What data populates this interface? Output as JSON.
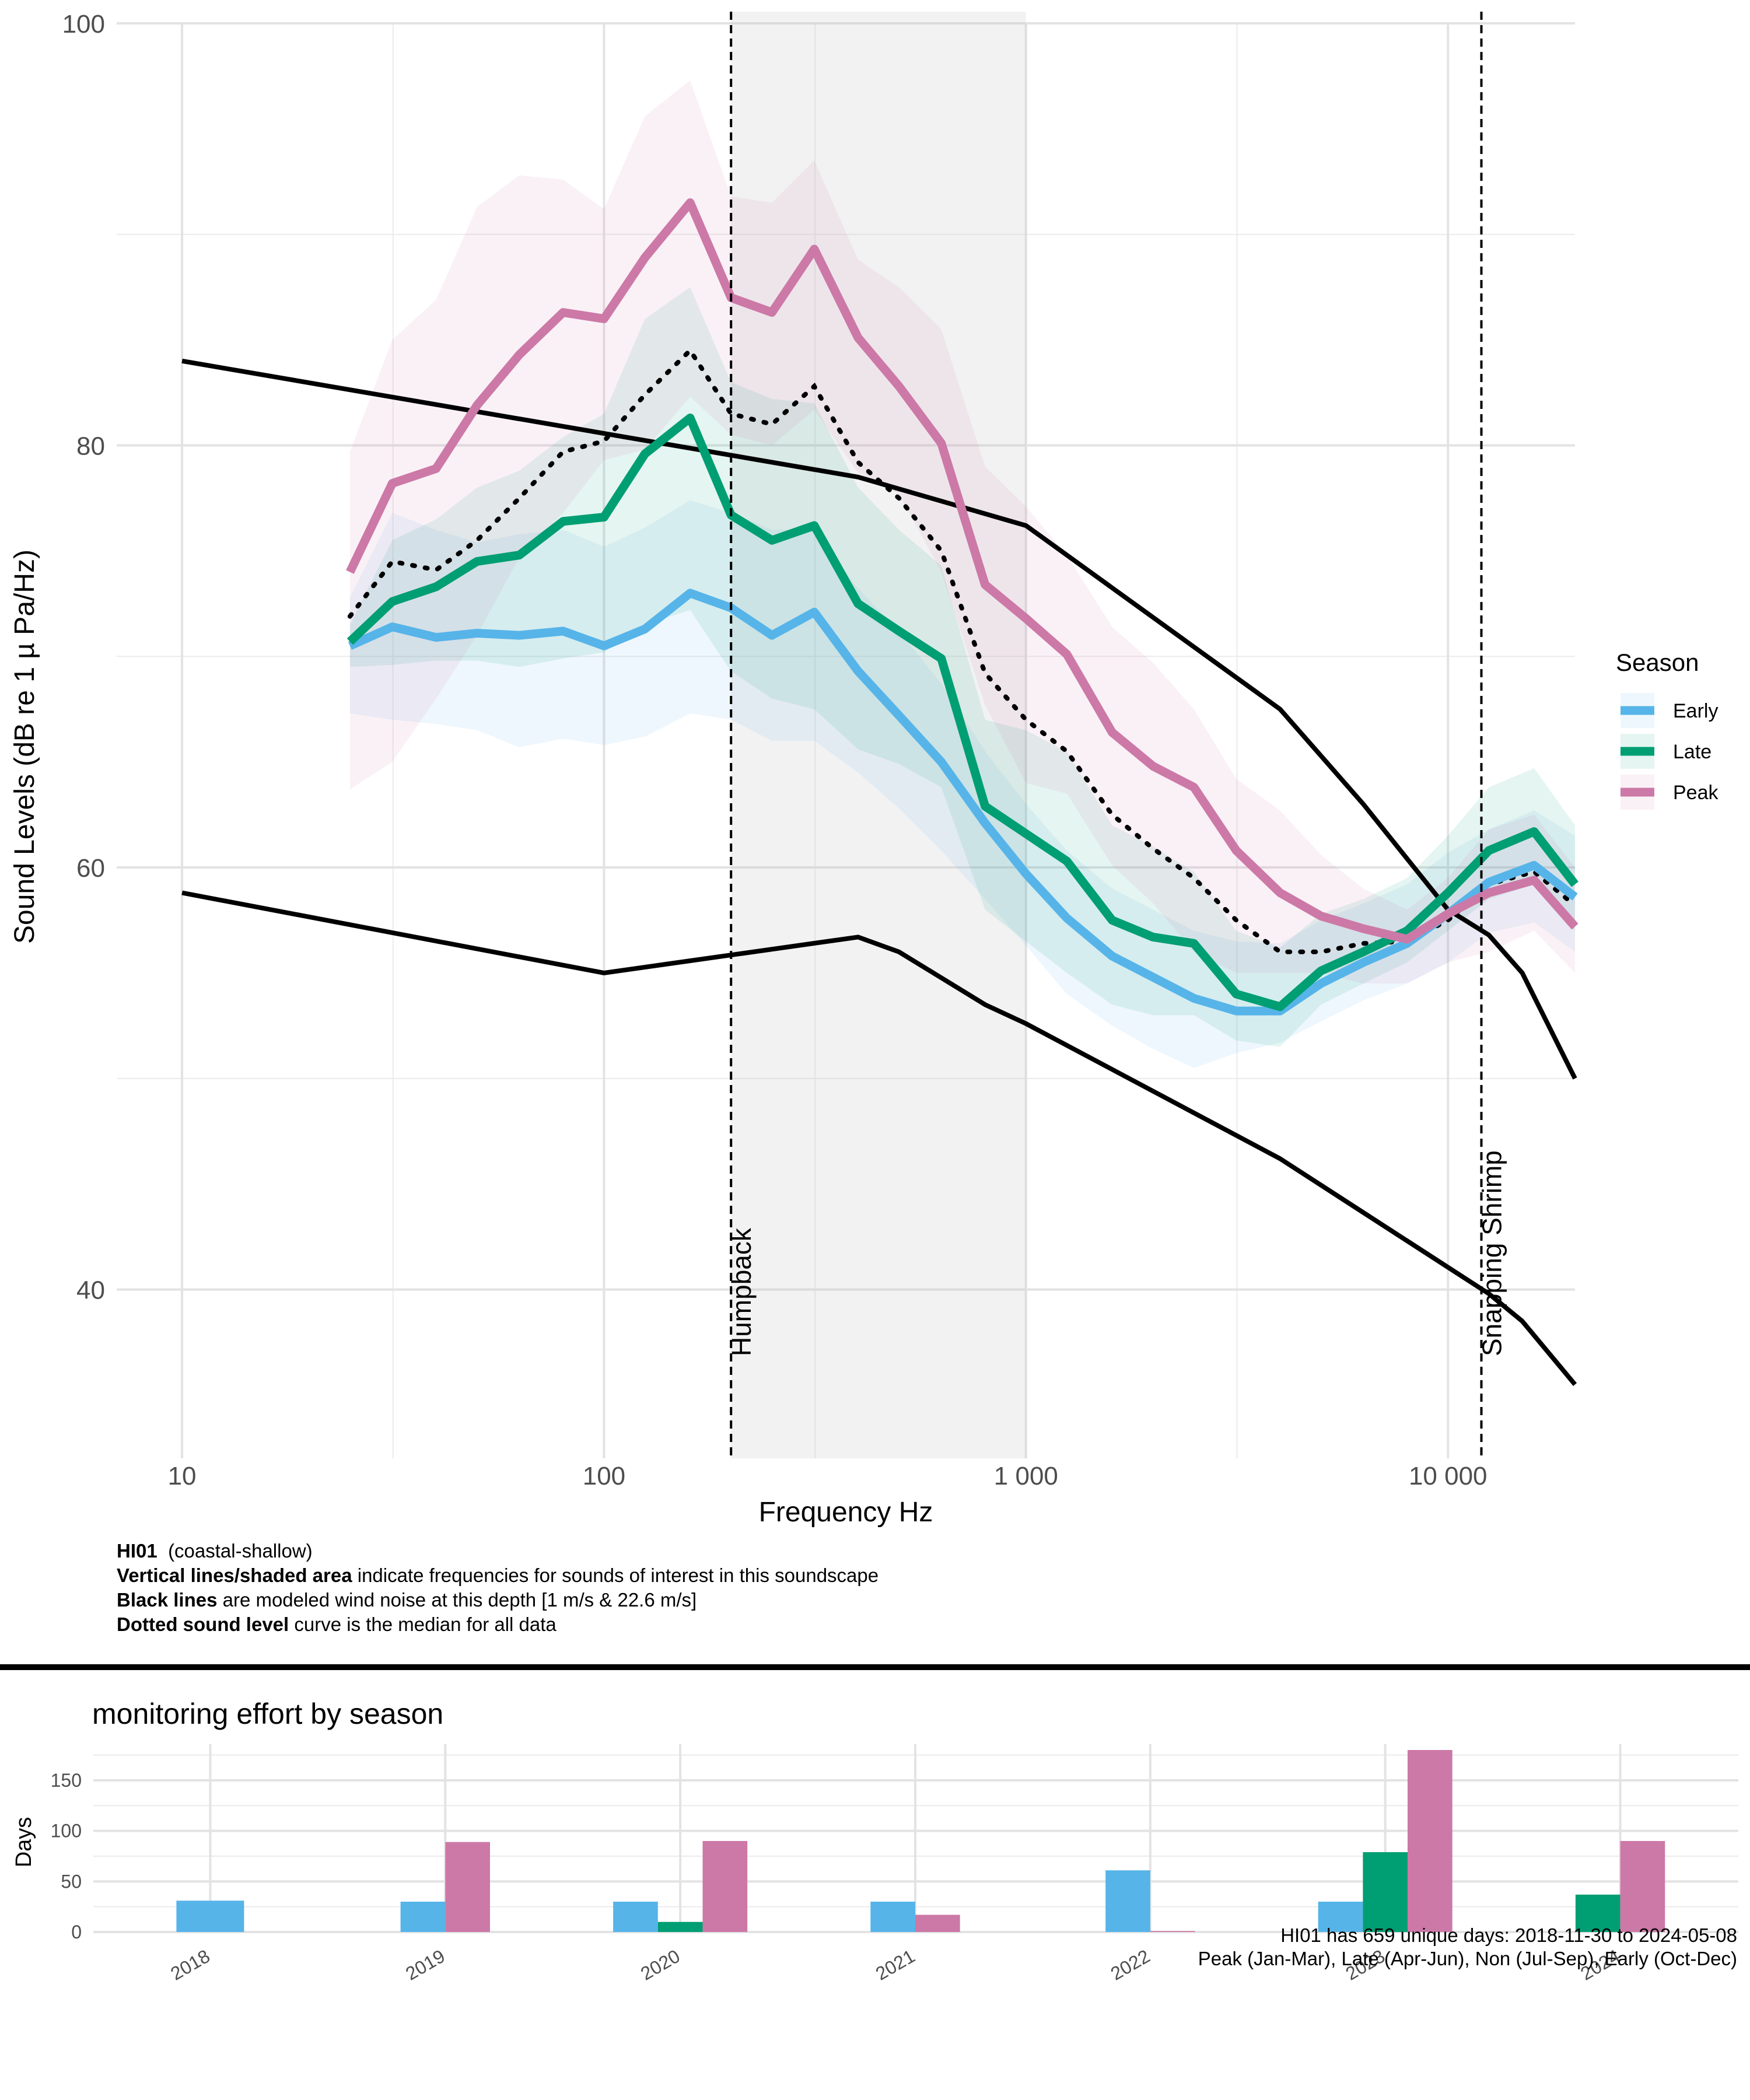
{
  "chart_data": [
    {
      "type": "line",
      "xlabel": "Frequency Hz",
      "ylabel": "Sound Levels (dB re 1 µ Pa/Hz)",
      "x_scale": "log",
      "xlim": [
        7,
        20000
      ],
      "ylim": [
        32,
        100
      ],
      "x_ticks": [
        10,
        100,
        1000,
        10000
      ],
      "x_tick_labels": [
        "10",
        "100",
        "1 000",
        "10 000"
      ],
      "y_ticks": [
        40,
        60,
        80,
        100
      ],
      "grid": true,
      "legend": {
        "title": "Season",
        "position": "right"
      },
      "x": [
        25,
        31.5,
        40,
        50,
        63,
        80,
        100,
        125,
        160,
        200,
        250,
        315,
        400,
        500,
        630,
        800,
        1000,
        1250,
        1600,
        2000,
        2500,
        3150,
        4000,
        5000,
        6300,
        8000,
        10000,
        12500,
        16000,
        20000
      ],
      "series": [
        {
          "name": "Early",
          "color": "#56B4E9",
          "values": [
            70.5,
            71.4,
            70.9,
            71.1,
            71.0,
            71.2,
            70.5,
            71.3,
            73.0,
            72.3,
            71.0,
            72.1,
            69.3,
            67.2,
            65.0,
            62.1,
            59.7,
            57.6,
            55.8,
            54.8,
            53.8,
            53.2,
            53.2,
            54.5,
            55.5,
            56.4,
            57.8,
            59.3,
            60.1,
            58.6
          ],
          "upper": [
            72.8,
            76.8,
            76.0,
            75.4,
            75.8,
            76.0,
            75.2,
            76.1,
            77.4,
            76.8,
            76.0,
            76.0,
            73.2,
            71.2,
            68.7,
            65.5,
            63.0,
            60.8,
            59.0,
            58.0,
            57.0,
            56.5,
            56.4,
            57.5,
            58.3,
            59.2,
            60.7,
            61.8,
            62.7,
            61.5
          ],
          "lower": [
            67.3,
            67.0,
            66.8,
            66.5,
            65.7,
            66.1,
            65.8,
            66.2,
            67.3,
            67.0,
            66.0,
            66.0,
            64.5,
            62.8,
            60.8,
            58.5,
            56.3,
            54.0,
            52.5,
            51.4,
            50.5,
            51.2,
            51.7,
            52.7,
            53.7,
            54.5,
            55.5,
            56.9,
            57.4,
            56.0
          ]
        },
        {
          "name": "Late",
          "color": "#009E73",
          "values": [
            70.7,
            72.6,
            73.3,
            74.5,
            74.8,
            76.4,
            76.6,
            79.6,
            81.3,
            76.7,
            75.5,
            76.2,
            72.5,
            71.2,
            69.9,
            62.9,
            61.6,
            60.3,
            57.5,
            56.7,
            56.4,
            54.0,
            53.4,
            55.1,
            56.0,
            57.0,
            58.8,
            60.8,
            61.7,
            59.2
          ],
          "upper": [
            71.5,
            75.5,
            76.5,
            78.0,
            78.8,
            80.4,
            81.5,
            86.0,
            87.5,
            83.0,
            82.2,
            82.0,
            78.0,
            76.0,
            74.3,
            67.0,
            66.5,
            65.5,
            62.0,
            61.0,
            59.8,
            57.0,
            56.2,
            57.8,
            58.5,
            59.5,
            61.5,
            63.8,
            64.7,
            62.0
          ],
          "lower": [
            69.5,
            69.6,
            69.8,
            69.8,
            69.5,
            69.9,
            70.2,
            71.5,
            72.2,
            69.3,
            68.0,
            67.5,
            65.6,
            64.9,
            63.8,
            58.0,
            56.5,
            55.0,
            53.5,
            53.0,
            53.0,
            51.8,
            51.5,
            53.5,
            54.5,
            55.5,
            57.0,
            58.5,
            59.2,
            57.0
          ]
        },
        {
          "name": "Peak",
          "color": "#CC79A7",
          "values": [
            74.0,
            78.2,
            78.9,
            81.9,
            84.3,
            86.3,
            86.0,
            88.9,
            91.5,
            87.0,
            86.3,
            89.3,
            85.1,
            82.8,
            80.1,
            73.4,
            71.8,
            70.1,
            66.4,
            64.8,
            63.8,
            60.8,
            58.8,
            57.7,
            57.1,
            56.6,
            57.8,
            58.8,
            59.4,
            57.2
          ],
          "upper": [
            79.7,
            85.0,
            86.9,
            91.3,
            92.8,
            92.6,
            91.2,
            95.6,
            97.3,
            91.8,
            91.5,
            93.5,
            88.8,
            87.5,
            85.5,
            79.0,
            77.1,
            74.8,
            71.4,
            69.7,
            67.5,
            64.2,
            62.7,
            60.6,
            59.0,
            58.0,
            59.5,
            61.8,
            62.5,
            60.0
          ],
          "lower": [
            63.7,
            65.0,
            68.0,
            71.0,
            74.7,
            76.8,
            79.3,
            79.8,
            82.3,
            80.5,
            80.0,
            81.7,
            78.7,
            77.7,
            74.0,
            67.7,
            64.0,
            63.5,
            60.1,
            58.3,
            56.0,
            55.0,
            55.0,
            55.0,
            54.5,
            54.5,
            55.5,
            56.0,
            57.0,
            55.0
          ]
        }
      ],
      "median_all": {
        "style": "dotted",
        "values": [
          71.9,
          74.5,
          74.1,
          75.5,
          77.5,
          79.7,
          80.2,
          82.4,
          84.5,
          81.5,
          81.0,
          82.8,
          79.2,
          77.5,
          75.0,
          69.2,
          67.0,
          65.5,
          62.5,
          60.9,
          59.5,
          57.5,
          56.0,
          56.0,
          56.4,
          56.5,
          57.5,
          59.2,
          59.8,
          58.2
        ]
      },
      "wind_noise": [
        {
          "label": "1 m/s",
          "x": [
            10,
            100,
            400,
            500,
            800,
            1000,
            4000,
            12500,
            15000,
            20000
          ],
          "y": [
            58.8,
            55.0,
            56.7,
            56.0,
            53.5,
            52.6,
            46.2,
            39.8,
            38.5,
            35.5
          ]
        },
        {
          "label": "22.6 m/s",
          "x": [
            10,
            400,
            1000,
            4000,
            6300,
            10000,
            12500,
            15000,
            20000
          ],
          "y": [
            84.0,
            78.5,
            76.2,
            67.5,
            63.0,
            58.0,
            56.8,
            55.0,
            50.0
          ]
        }
      ],
      "shaded_band": {
        "x": [
          200,
          1000
        ]
      },
      "vertical_lines": [
        {
          "x": 200,
          "label": "Humpback"
        },
        {
          "x": 12000,
          "label": "Snapping Shrimp"
        }
      ]
    },
    {
      "type": "bar",
      "title": "monitoring effort by season",
      "ylabel": "Days",
      "ylim": [
        0,
        180
      ],
      "y_ticks": [
        0,
        50,
        100,
        150
      ],
      "categories": [
        "2018",
        "2019",
        "2020",
        "2021",
        "2022",
        "2023",
        "2024"
      ],
      "series": [
        {
          "name": "Early",
          "color": "#56B4E9",
          "values": [
            31,
            30,
            30,
            30,
            61,
            30,
            0
          ]
        },
        {
          "name": "Late",
          "color": "#009E73",
          "values": [
            0,
            0,
            10,
            0,
            0,
            79,
            37
          ]
        },
        {
          "name": "Peak",
          "color": "#CC79A7",
          "values": [
            0,
            89,
            90,
            17,
            1,
            180,
            90
          ]
        }
      ]
    }
  ],
  "caption": {
    "site_name": "HI01",
    "site_type": "(coastal-shallow)",
    "line1_bold": "Vertical  lines/shaded  area",
    "line1_rest": " indicate frequencies for sounds of interest in this soundscape",
    "line2_bold": "Black lines",
    "line2_rest": " are modeled wind noise at this depth [1 m/s  &  22.6 m/s]",
    "line3_bold": "Dotted sound level",
    "line3_rest": "  curve is the median for all data"
  },
  "footer": {
    "line1": "HI01 has 659 unique days: 2018-11-30 to 2024-05-08",
    "line2": "Peak (Jan-Mar), Late (Apr-Jun), Non (Jul-Sep), Early (Oct-Dec)"
  }
}
